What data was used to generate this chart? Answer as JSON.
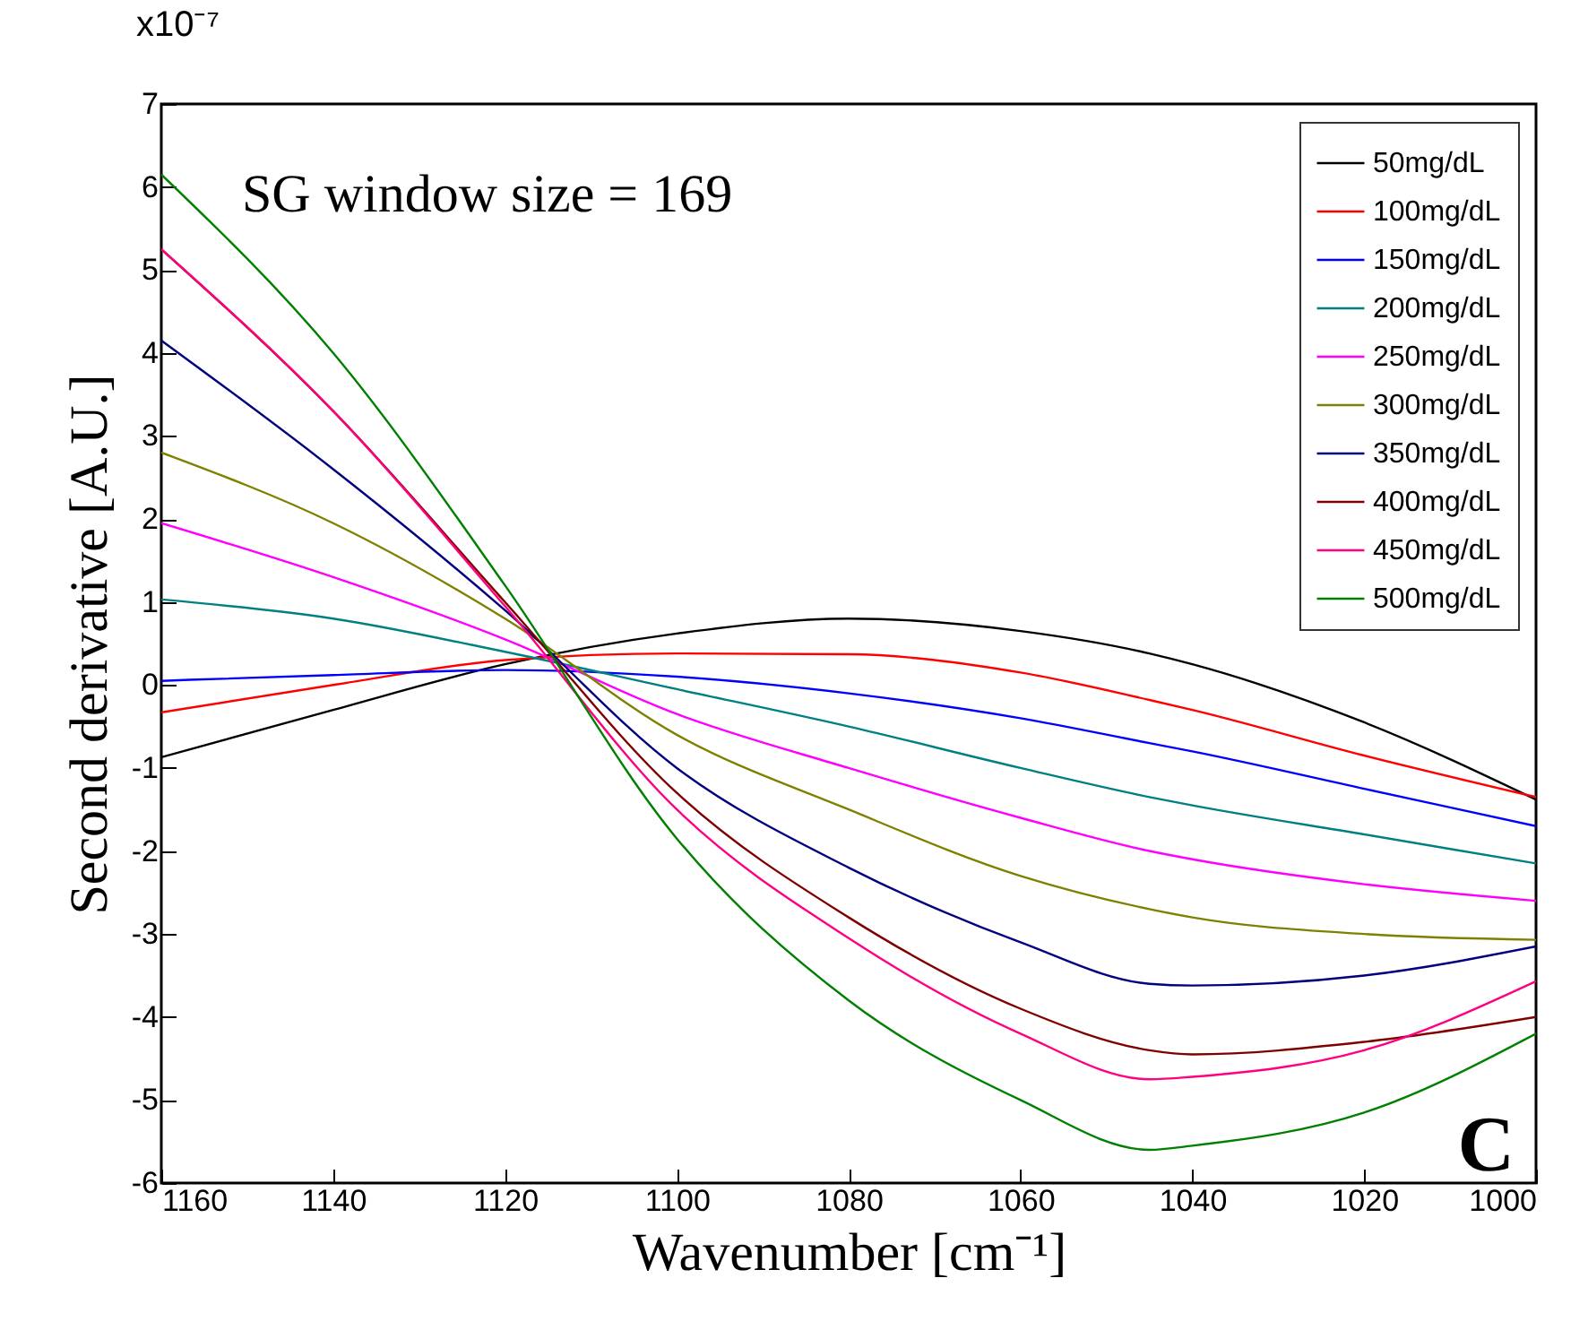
{
  "chart_data": {
    "type": "line",
    "xlabel": "Wavenumber [cm⁻¹]",
    "ylabel": "Second derivative [A.U.]",
    "annotations": [
      "SG window size = 169",
      "C",
      "x10⁻⁷"
    ],
    "x": [
      1160,
      1140,
      1120,
      1100,
      1080,
      1060,
      1045,
      1040,
      1020,
      1000
    ],
    "series": [
      {
        "name": "50mg/dL",
        "color": "#000000",
        "values": [
          -0.87,
          -0.3,
          0.25,
          0.62,
          0.8,
          0.65,
          0.38,
          0.25,
          -0.45,
          -1.38
        ]
      },
      {
        "name": "100mg/dL",
        "color": "#ff0000",
        "values": [
          -0.33,
          0.0,
          0.3,
          0.38,
          0.37,
          0.15,
          -0.18,
          -0.3,
          -0.85,
          -1.35
        ]
      },
      {
        "name": "150mg/dL",
        "color": "#0000ff",
        "values": [
          0.05,
          0.12,
          0.18,
          0.1,
          -0.1,
          -0.4,
          -0.7,
          -0.8,
          -1.25,
          -1.7
        ]
      },
      {
        "name": "200mg/dL",
        "color": "#008080",
        "values": [
          1.03,
          0.8,
          0.4,
          -0.05,
          -0.5,
          -1.0,
          -1.35,
          -1.45,
          -1.8,
          -2.15
        ]
      },
      {
        "name": "250mg/dL",
        "color": "#ff00ff",
        "values": [
          1.95,
          1.3,
          0.55,
          -0.35,
          -1.0,
          -1.6,
          -2.0,
          -2.1,
          -2.4,
          -2.6
        ]
      },
      {
        "name": "300mg/dL",
        "color": "#808000",
        "values": [
          2.8,
          1.95,
          0.8,
          -0.6,
          -1.5,
          -2.3,
          -2.7,
          -2.8,
          -3.0,
          -3.07
        ]
      },
      {
        "name": "350mg/dL",
        "color": "#000080",
        "values": [
          4.15,
          2.6,
          0.9,
          -1.0,
          -2.2,
          -3.1,
          -3.6,
          -3.62,
          -3.5,
          -3.15
        ]
      },
      {
        "name": "400mg/dL",
        "color": "#800000",
        "values": [
          5.25,
          3.3,
          1.0,
          -1.3,
          -2.8,
          -3.9,
          -4.4,
          -4.45,
          -4.3,
          -4.0
        ]
      },
      {
        "name": "450mg/dL",
        "color": "#ff0080",
        "values": [
          5.25,
          3.3,
          0.95,
          -1.5,
          -3.05,
          -4.2,
          -4.75,
          -4.72,
          -4.4,
          -3.57
        ]
      },
      {
        "name": "500mg/dL",
        "color": "#008000",
        "values": [
          6.15,
          4.0,
          1.2,
          -1.85,
          -3.8,
          -5.0,
          -5.6,
          -5.55,
          -5.15,
          -4.2
        ]
      }
    ],
    "xlim": [
      1160,
      1000
    ],
    "xticks": [
      1160,
      1140,
      1120,
      1100,
      1080,
      1060,
      1040,
      1020,
      1000
    ],
    "ylim": [
      -6,
      7
    ],
    "yticks": [
      -6,
      -5,
      -4,
      -3,
      -2,
      -1,
      0,
      1,
      2,
      3,
      4,
      5,
      6,
      7
    ],
    "legend": "top right",
    "marker": "none",
    "line_style": "solid"
  }
}
